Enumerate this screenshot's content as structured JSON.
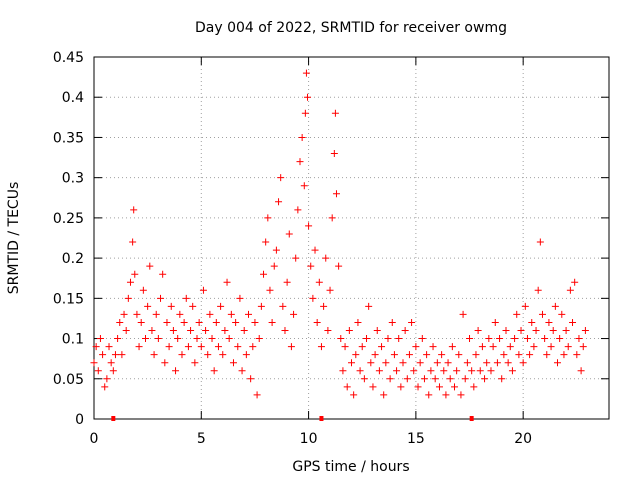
{
  "chart_data": {
    "type": "scatter",
    "title": "Day 004 of 2022, SRMTID for receiver owmg",
    "xlabel": "GPS time / hours",
    "ylabel": "SRMTID / TECUs",
    "xlim": [
      0,
      24
    ],
    "ylim": [
      0,
      0.45
    ],
    "xticks": [
      0,
      5,
      10,
      15,
      20
    ],
    "xtick_labels": [
      "0",
      "5",
      "10",
      "15",
      "20"
    ],
    "yticks": [
      0,
      0.05,
      0.1,
      0.15,
      0.2,
      0.25,
      0.3,
      0.35,
      0.4,
      0.45
    ],
    "ytick_labels": [
      "0",
      "0.05",
      "0.1",
      "0.15",
      "0.2",
      "0.25",
      "0.3",
      "0.35",
      "0.4",
      "0.45"
    ],
    "grid": true,
    "marker": "+",
    "color": "#ff0000",
    "x_markers": [
      0.9,
      10.6,
      17.6
    ],
    "series": [
      {
        "name": "SRMTID",
        "points": [
          [
            0.0,
            0.07
          ],
          [
            0.1,
            0.09
          ],
          [
            0.2,
            0.06
          ],
          [
            0.3,
            0.1
          ],
          [
            0.4,
            0.08
          ],
          [
            0.5,
            0.04
          ],
          [
            0.6,
            0.05
          ],
          [
            0.7,
            0.09
          ],
          [
            0.8,
            0.07
          ],
          [
            0.9,
            0.06
          ],
          [
            1.0,
            0.08
          ],
          [
            1.1,
            0.1
          ],
          [
            1.2,
            0.12
          ],
          [
            1.3,
            0.08
          ],
          [
            1.4,
            0.13
          ],
          [
            1.5,
            0.11
          ],
          [
            1.6,
            0.15
          ],
          [
            1.7,
            0.17
          ],
          [
            1.8,
            0.22
          ],
          [
            1.85,
            0.26
          ],
          [
            1.9,
            0.18
          ],
          [
            2.0,
            0.13
          ],
          [
            2.1,
            0.09
          ],
          [
            2.2,
            0.12
          ],
          [
            2.3,
            0.16
          ],
          [
            2.4,
            0.1
          ],
          [
            2.5,
            0.14
          ],
          [
            2.6,
            0.19
          ],
          [
            2.7,
            0.11
          ],
          [
            2.8,
            0.08
          ],
          [
            2.9,
            0.13
          ],
          [
            3.0,
            0.1
          ],
          [
            3.1,
            0.15
          ],
          [
            3.2,
            0.18
          ],
          [
            3.3,
            0.07
          ],
          [
            3.4,
            0.12
          ],
          [
            3.5,
            0.09
          ],
          [
            3.6,
            0.14
          ],
          [
            3.7,
            0.11
          ],
          [
            3.8,
            0.06
          ],
          [
            3.9,
            0.1
          ],
          [
            4.0,
            0.13
          ],
          [
            4.1,
            0.08
          ],
          [
            4.2,
            0.12
          ],
          [
            4.3,
            0.15
          ],
          [
            4.4,
            0.09
          ],
          [
            4.5,
            0.11
          ],
          [
            4.6,
            0.14
          ],
          [
            4.7,
            0.07
          ],
          [
            4.8,
            0.1
          ],
          [
            4.9,
            0.12
          ],
          [
            5.0,
            0.09
          ],
          [
            5.1,
            0.16
          ],
          [
            5.2,
            0.11
          ],
          [
            5.3,
            0.08
          ],
          [
            5.4,
            0.13
          ],
          [
            5.5,
            0.1
          ],
          [
            5.6,
            0.06
          ],
          [
            5.7,
            0.12
          ],
          [
            5.8,
            0.09
          ],
          [
            5.9,
            0.14
          ],
          [
            6.0,
            0.08
          ],
          [
            6.1,
            0.11
          ],
          [
            6.2,
            0.17
          ],
          [
            6.3,
            0.1
          ],
          [
            6.4,
            0.13
          ],
          [
            6.5,
            0.07
          ],
          [
            6.6,
            0.12
          ],
          [
            6.7,
            0.09
          ],
          [
            6.8,
            0.15
          ],
          [
            6.9,
            0.06
          ],
          [
            7.0,
            0.11
          ],
          [
            7.1,
            0.08
          ],
          [
            7.2,
            0.13
          ],
          [
            7.3,
            0.05
          ],
          [
            7.4,
            0.09
          ],
          [
            7.5,
            0.12
          ],
          [
            7.6,
            0.03
          ],
          [
            7.7,
            0.1
          ],
          [
            7.8,
            0.14
          ],
          [
            7.9,
            0.18
          ],
          [
            8.0,
            0.22
          ],
          [
            8.1,
            0.25
          ],
          [
            8.2,
            0.16
          ],
          [
            8.3,
            0.12
          ],
          [
            8.4,
            0.19
          ],
          [
            8.5,
            0.21
          ],
          [
            8.6,
            0.27
          ],
          [
            8.7,
            0.3
          ],
          [
            8.8,
            0.14
          ],
          [
            8.9,
            0.11
          ],
          [
            9.0,
            0.17
          ],
          [
            9.1,
            0.23
          ],
          [
            9.2,
            0.09
          ],
          [
            9.3,
            0.13
          ],
          [
            9.4,
            0.2
          ],
          [
            9.5,
            0.26
          ],
          [
            9.6,
            0.32
          ],
          [
            9.7,
            0.35
          ],
          [
            9.8,
            0.29
          ],
          [
            9.85,
            0.38
          ],
          [
            9.9,
            0.43
          ],
          [
            9.95,
            0.4
          ],
          [
            10.0,
            0.24
          ],
          [
            10.1,
            0.19
          ],
          [
            10.2,
            0.15
          ],
          [
            10.3,
            0.21
          ],
          [
            10.4,
            0.12
          ],
          [
            10.5,
            0.17
          ],
          [
            10.6,
            0.09
          ],
          [
            10.7,
            0.14
          ],
          [
            10.8,
            0.2
          ],
          [
            10.9,
            0.11
          ],
          [
            11.0,
            0.16
          ],
          [
            11.1,
            0.25
          ],
          [
            11.2,
            0.33
          ],
          [
            11.25,
            0.38
          ],
          [
            11.3,
            0.28
          ],
          [
            11.4,
            0.19
          ],
          [
            11.5,
            0.1
          ],
          [
            11.6,
            0.06
          ],
          [
            11.7,
            0.09
          ],
          [
            11.8,
            0.04
          ],
          [
            11.9,
            0.11
          ],
          [
            12.0,
            0.07
          ],
          [
            12.1,
            0.03
          ],
          [
            12.2,
            0.08
          ],
          [
            12.3,
            0.12
          ],
          [
            12.4,
            0.06
          ],
          [
            12.5,
            0.09
          ],
          [
            12.6,
            0.05
          ],
          [
            12.7,
            0.1
          ],
          [
            12.8,
            0.14
          ],
          [
            12.9,
            0.07
          ],
          [
            13.0,
            0.04
          ],
          [
            13.1,
            0.08
          ],
          [
            13.2,
            0.11
          ],
          [
            13.3,
            0.06
          ],
          [
            13.4,
            0.09
          ],
          [
            13.5,
            0.03
          ],
          [
            13.6,
            0.07
          ],
          [
            13.7,
            0.1
          ],
          [
            13.8,
            0.05
          ],
          [
            13.9,
            0.12
          ],
          [
            14.0,
            0.08
          ],
          [
            14.1,
            0.06
          ],
          [
            14.2,
            0.1
          ],
          [
            14.3,
            0.04
          ],
          [
            14.4,
            0.07
          ],
          [
            14.5,
            0.11
          ],
          [
            14.6,
            0.05
          ],
          [
            14.7,
            0.08
          ],
          [
            14.8,
            0.12
          ],
          [
            14.9,
            0.06
          ],
          [
            15.0,
            0.09
          ],
          [
            15.1,
            0.04
          ],
          [
            15.2,
            0.07
          ],
          [
            15.3,
            0.1
          ],
          [
            15.4,
            0.05
          ],
          [
            15.5,
            0.08
          ],
          [
            15.6,
            0.03
          ],
          [
            15.7,
            0.06
          ],
          [
            15.8,
            0.09
          ],
          [
            15.9,
            0.05
          ],
          [
            16.0,
            0.07
          ],
          [
            16.1,
            0.04
          ],
          [
            16.2,
            0.08
          ],
          [
            16.3,
            0.06
          ],
          [
            16.4,
            0.03
          ],
          [
            16.5,
            0.07
          ],
          [
            16.6,
            0.05
          ],
          [
            16.7,
            0.09
          ],
          [
            16.8,
            0.04
          ],
          [
            16.9,
            0.06
          ],
          [
            17.0,
            0.08
          ],
          [
            17.1,
            0.03
          ],
          [
            17.2,
            0.13
          ],
          [
            17.3,
            0.05
          ],
          [
            17.4,
            0.07
          ],
          [
            17.5,
            0.1
          ],
          [
            17.6,
            0.06
          ],
          [
            17.7,
            0.04
          ],
          [
            17.8,
            0.08
          ],
          [
            17.9,
            0.11
          ],
          [
            18.0,
            0.06
          ],
          [
            18.1,
            0.09
          ],
          [
            18.2,
            0.05
          ],
          [
            18.3,
            0.07
          ],
          [
            18.4,
            0.1
          ],
          [
            18.5,
            0.06
          ],
          [
            18.6,
            0.09
          ],
          [
            18.7,
            0.12
          ],
          [
            18.8,
            0.07
          ],
          [
            18.9,
            0.1
          ],
          [
            19.0,
            0.05
          ],
          [
            19.1,
            0.08
          ],
          [
            19.2,
            0.11
          ],
          [
            19.3,
            0.07
          ],
          [
            19.4,
            0.09
          ],
          [
            19.5,
            0.06
          ],
          [
            19.6,
            0.1
          ],
          [
            19.7,
            0.13
          ],
          [
            19.8,
            0.08
          ],
          [
            19.9,
            0.11
          ],
          [
            20.0,
            0.07
          ],
          [
            20.1,
            0.14
          ],
          [
            20.2,
            0.1
          ],
          [
            20.3,
            0.08
          ],
          [
            20.4,
            0.12
          ],
          [
            20.5,
            0.09
          ],
          [
            20.6,
            0.11
          ],
          [
            20.7,
            0.16
          ],
          [
            20.8,
            0.22
          ],
          [
            20.9,
            0.13
          ],
          [
            21.0,
            0.1
          ],
          [
            21.1,
            0.08
          ],
          [
            21.2,
            0.12
          ],
          [
            21.3,
            0.09
          ],
          [
            21.4,
            0.11
          ],
          [
            21.5,
            0.14
          ],
          [
            21.6,
            0.07
          ],
          [
            21.7,
            0.1
          ],
          [
            21.8,
            0.13
          ],
          [
            21.9,
            0.08
          ],
          [
            22.0,
            0.11
          ],
          [
            22.1,
            0.09
          ],
          [
            22.2,
            0.16
          ],
          [
            22.3,
            0.12
          ],
          [
            22.4,
            0.17
          ],
          [
            22.5,
            0.08
          ],
          [
            22.6,
            0.1
          ],
          [
            22.7,
            0.06
          ],
          [
            22.8,
            0.09
          ],
          [
            22.9,
            0.11
          ]
        ]
      }
    ]
  }
}
